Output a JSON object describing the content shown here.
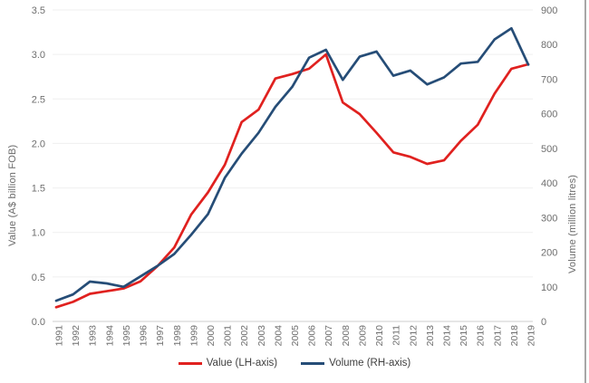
{
  "chart_data": {
    "type": "line",
    "x": [
      1991,
      1992,
      1993,
      1994,
      1995,
      1996,
      1997,
      1998,
      1999,
      2000,
      2001,
      2002,
      2003,
      2004,
      2005,
      2006,
      2007,
      2008,
      2009,
      2010,
      2011,
      2012,
      2013,
      2014,
      2015,
      2016,
      2017,
      2018,
      2019
    ],
    "series": [
      {
        "name": "Value (LH-axis)",
        "axis": "left",
        "color": "#e0211f",
        "values": [
          0.16,
          0.22,
          0.31,
          0.34,
          0.37,
          0.45,
          0.62,
          0.83,
          1.2,
          1.45,
          1.76,
          2.24,
          2.38,
          2.73,
          2.78,
          2.84,
          3.0,
          2.46,
          2.33,
          2.12,
          1.9,
          1.85,
          1.77,
          1.81,
          2.03,
          2.21,
          2.56,
          2.84,
          2.89
        ]
      },
      {
        "name": "Volume (RH-axis)",
        "axis": "right",
        "color": "#264d77",
        "values": [
          60,
          78,
          115,
          110,
          100,
          130,
          160,
          195,
          250,
          310,
          415,
          485,
          545,
          620,
          678,
          762,
          785,
          698,
          765,
          780,
          710,
          725,
          685,
          705,
          745,
          750,
          815,
          847,
          742
        ]
      }
    ],
    "left_axis": {
      "title": "Value (A$ billion FOB)",
      "min": 0,
      "max": 3.5,
      "ticks": [
        "0.0",
        "0.5",
        "1.0",
        "1.5",
        "2.0",
        "2.5",
        "3.0",
        "3.5"
      ]
    },
    "right_axis": {
      "title": "Volume (million litres)",
      "min": 0,
      "max": 900,
      "ticks": [
        "0",
        "100",
        "200",
        "300",
        "400",
        "500",
        "600",
        "700",
        "800",
        "900"
      ]
    },
    "grid": "horizontal",
    "legend_position": "bottom"
  },
  "legend": {
    "value_label": "Value (LH-axis)",
    "volume_label": "Volume (RH-axis)"
  },
  "axes": {
    "left_title": "Value (A$ billion FOB)",
    "right_title": "Volume (million litres)"
  },
  "colors": {
    "value_line": "#e0211f",
    "volume_line": "#264d77",
    "tick_text": "#6e6e6e",
    "grid_line": "#efefef",
    "axis_line": "#d6d6d6",
    "legend_text": "#3f3f3f"
  }
}
